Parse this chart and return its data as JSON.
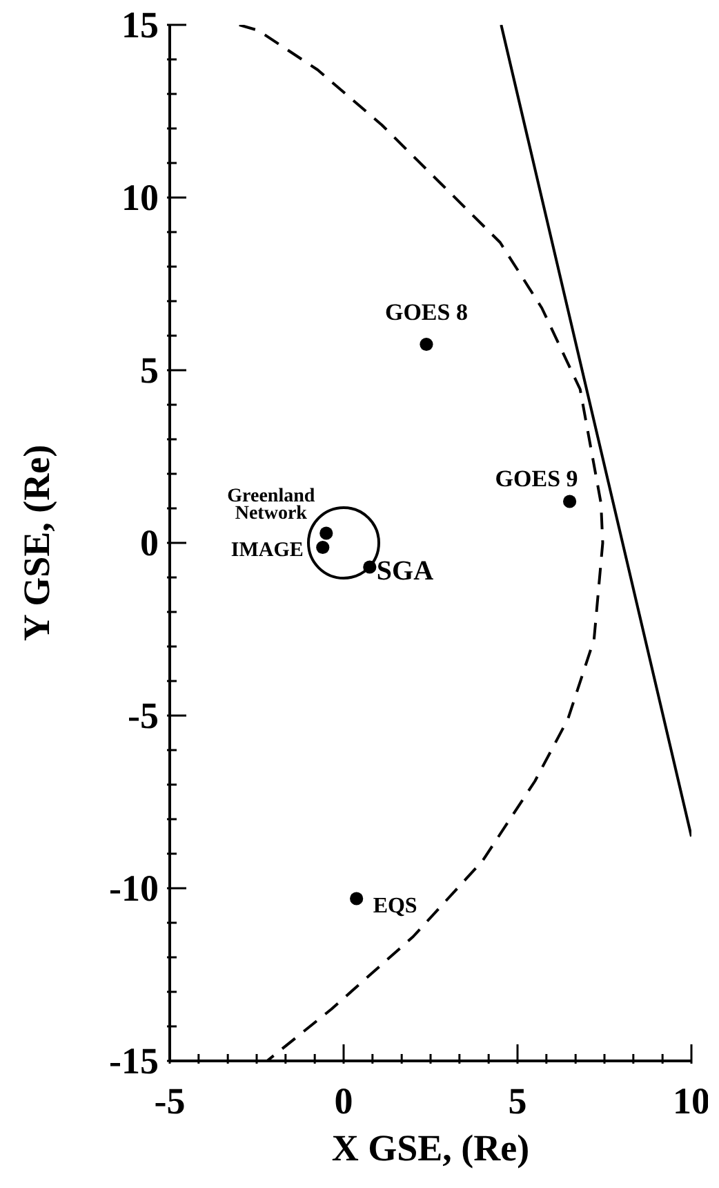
{
  "chart_data": {
    "type": "scatter",
    "xlabel": "X GSE, (Re)",
    "ylabel": "Y GSE, (Re)",
    "xlim": [
      -5,
      10
    ],
    "ylim": [
      -15,
      15
    ],
    "xticks": [
      -5,
      {
        "value": -4.17,
        "label": null
      },
      {
        "value": -3.33,
        "label": null
      },
      {
        "value": -2.5,
        "label": null
      },
      {
        "value": -1.67,
        "label": null
      },
      {
        "value": -0.83,
        "label": null
      },
      0,
      {
        "value": 0.83,
        "label": null
      },
      {
        "value": 1.67,
        "label": null
      },
      {
        "value": 2.5,
        "label": null
      },
      {
        "value": 3.33,
        "label": null
      },
      {
        "value": 4.17,
        "label": null
      },
      5,
      {
        "value": 5.83,
        "label": null
      },
      {
        "value": 6.67,
        "label": null
      },
      {
        "value": 7.5,
        "label": null
      },
      {
        "value": 8.33,
        "label": null
      },
      {
        "value": 9.17,
        "label": null
      },
      10
    ],
    "yticks": [
      -15,
      {
        "value": -14,
        "label": null
      },
      {
        "value": -13,
        "label": null
      },
      {
        "value": -12,
        "label": null
      },
      {
        "value": -11,
        "label": null
      },
      -10,
      {
        "value": -9,
        "label": null
      },
      {
        "value": -8,
        "label": null
      },
      {
        "value": -7,
        "label": null
      },
      {
        "value": -6,
        "label": null
      },
      -5,
      {
        "value": -4,
        "label": null
      },
      {
        "value": -3,
        "label": null
      },
      {
        "value": -2,
        "label": null
      },
      {
        "value": -1,
        "label": null
      },
      0,
      {
        "value": 1,
        "label": null
      },
      {
        "value": 2,
        "label": null
      },
      {
        "value": 3,
        "label": null
      },
      {
        "value": 4,
        "label": null
      },
      5,
      {
        "value": 6,
        "label": null
      },
      {
        "value": 7,
        "label": null
      },
      {
        "value": 8,
        "label": null
      },
      {
        "value": 9,
        "label": null
      },
      10,
      {
        "value": 11,
        "label": null
      },
      {
        "value": 12,
        "label": null
      },
      {
        "value": 13,
        "label": null
      },
      {
        "value": 14,
        "label": null
      },
      15
    ],
    "series": [
      {
        "type": "scatter",
        "color": "#000000",
        "marker": "circle",
        "x": [
          2.38,
          6.5,
          -0.5,
          -0.6,
          0.75,
          0.37
        ],
        "values": [
          5.75,
          1.2,
          0.28,
          -0.13,
          -0.7,
          -10.3
        ]
      },
      {
        "type": "line",
        "color": "#000000",
        "marker": "none",
        "line_style": "dashed",
        "x": [
          -3.0,
          -2.46,
          -0.75,
          1.1,
          2.8,
          4.5,
          5.7,
          6.8,
          7.4,
          7.45,
          7.2,
          6.45,
          5.5,
          4.0,
          2.0,
          -0.35,
          -2.2
        ],
        "values": [
          15,
          14.84,
          13.7,
          12.1,
          10.4,
          8.7,
          6.8,
          4.45,
          1.15,
          0,
          -2.8,
          -5.1,
          -6.9,
          -9.2,
          -11.4,
          -13.5,
          -15
        ]
      },
      {
        "type": "line",
        "color": "#000000",
        "marker": "none",
        "line_style": "solid",
        "x": [
          4.53,
          10
        ],
        "values": [
          15,
          -8.5
        ]
      }
    ],
    "annotations": [
      {
        "text": "GOES 8",
        "x": 2.38,
        "y": 5.75
      },
      {
        "text": "GOES 9",
        "x": 6.5,
        "y": 1.2
      },
      {
        "text": "Greenland\nNetwork",
        "x": -0.5,
        "y": 0.28
      },
      {
        "text": "IMAGE",
        "x": -0.6,
        "y": -0.13
      },
      {
        "text": "SGA",
        "x": 0.75,
        "y": -0.7
      },
      {
        "text": "EQS",
        "x": 0.37,
        "y": -10.3
      }
    ]
  }
}
